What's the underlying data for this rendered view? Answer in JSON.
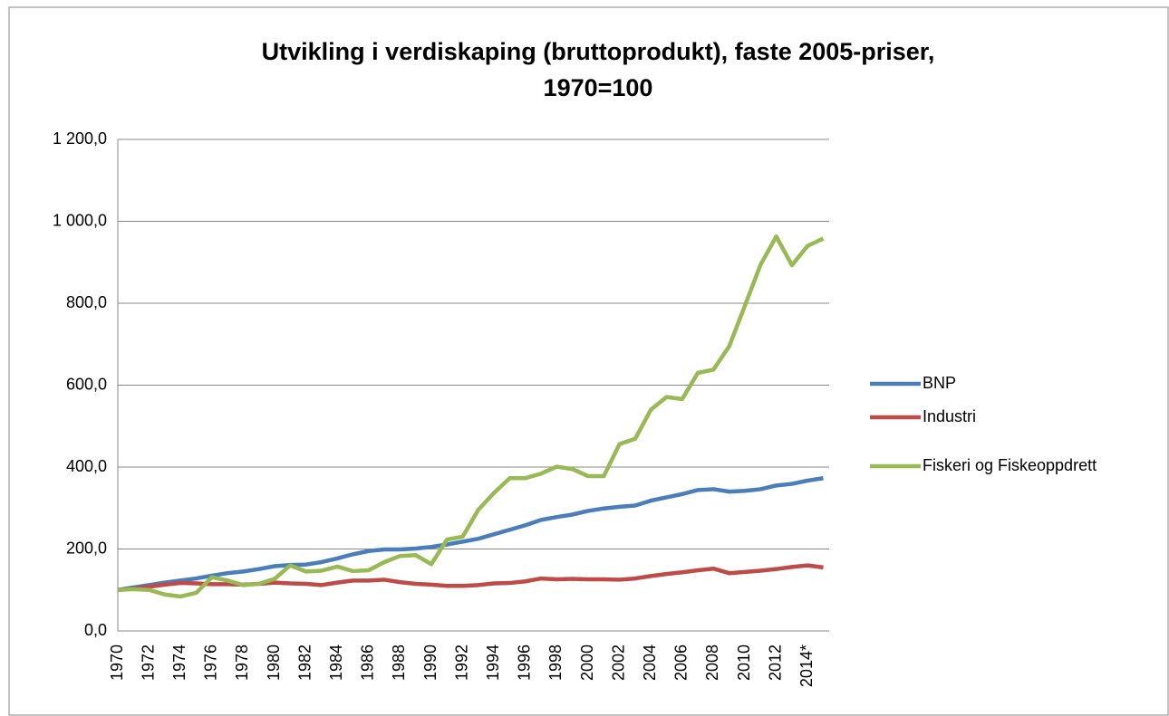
{
  "chart_data": {
    "type": "line",
    "title": [
      "Utvikling i verdiskaping (bruttoprodukt), faste 2005-priser,",
      "1970=100"
    ],
    "categories": [
      "1970",
      null,
      "1972",
      null,
      "1974",
      null,
      "1976",
      null,
      "1978",
      null,
      "1980",
      null,
      "1982",
      null,
      "1984",
      null,
      "1986",
      null,
      "1988",
      null,
      "1990",
      null,
      "1992",
      null,
      "1994",
      null,
      "1996",
      null,
      "1998",
      null,
      "2000",
      null,
      "2002",
      null,
      "2004",
      null,
      "2006",
      null,
      "2008",
      null,
      "2010",
      null,
      "2012",
      null,
      "2014*",
      null
    ],
    "series": [
      {
        "name": "BNP",
        "color": "#4a7ebb",
        "values": [
          100,
          106,
          112,
          118,
          123,
          128,
          135,
          141,
          145,
          151,
          158,
          161,
          162,
          168,
          177,
          187,
          195,
          199,
          199,
          201,
          205,
          211,
          218,
          225,
          236,
          247,
          258,
          271,
          278,
          284,
          293,
          299,
          303,
          306,
          318,
          326,
          334,
          344,
          346,
          340,
          342,
          346,
          355,
          359,
          367,
          373
        ]
      },
      {
        "name": "Industri",
        "color": "#be4b48",
        "values": [
          100,
          103,
          108,
          113,
          117,
          116,
          114,
          114,
          113,
          115,
          118,
          116,
          115,
          112,
          118,
          123,
          123,
          125,
          119,
          115,
          113,
          110,
          110,
          112,
          116,
          117,
          121,
          128,
          126,
          127,
          126,
          126,
          125,
          128,
          134,
          139,
          143,
          148,
          152,
          141,
          144,
          147,
          151,
          156,
          160,
          155
        ]
      },
      {
        "name": "Fiskeri og Fiskeoppdrett",
        "color": "#98b954",
        "values": [
          100,
          102,
          100,
          89,
          84,
          93,
          131,
          123,
          112,
          115,
          127,
          160,
          145,
          147,
          157,
          146,
          148,
          168,
          183,
          185,
          163,
          223,
          230,
          296,
          337,
          373,
          373,
          384,
          401,
          395,
          378,
          378,
          456,
          469,
          540,
          571,
          566,
          630,
          638,
          695,
          794,
          894,
          963,
          893,
          940,
          958
        ]
      }
    ],
    "ylim": [
      0,
      1200
    ],
    "yticks": [
      {
        "value": 0,
        "label": "0,0"
      },
      {
        "value": 200,
        "label": "200,0"
      },
      {
        "value": 400,
        "label": "400,0"
      },
      {
        "value": 600,
        "label": "600,0"
      },
      {
        "value": 800,
        "label": "800,0"
      },
      {
        "value": 1000,
        "label": "1 000,0"
      },
      {
        "value": 1200,
        "label": "1 200,0"
      }
    ],
    "grid": true,
    "legend": "right"
  }
}
